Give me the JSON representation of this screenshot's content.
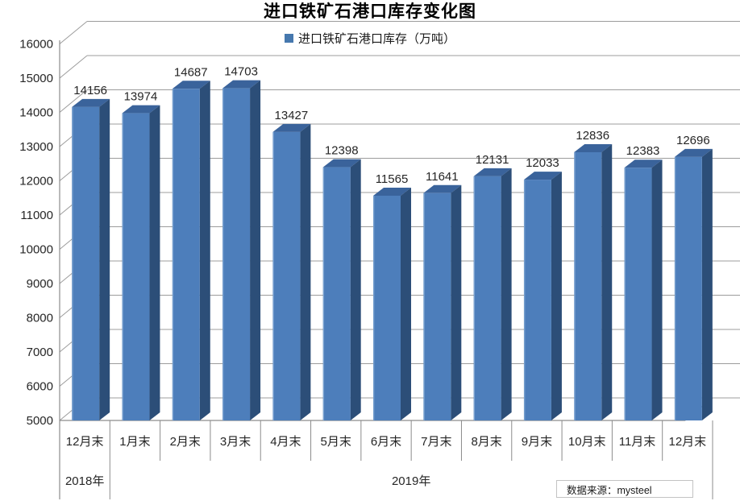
{
  "title": "进口铁矿石港口库存变化图",
  "legend": {
    "label": "进口铁矿石港口库存（万吨）",
    "marker_color": "#4678AE"
  },
  "source_note": "数据来源：mysteel",
  "chart_data": {
    "type": "bar",
    "variant": "3d-column",
    "title": "进口铁矿石港口库存变化图",
    "series_name": "进口铁矿石港口库存（万吨）",
    "categories": [
      "12月末",
      "1月末",
      "2月末",
      "3月末",
      "4月末",
      "5月末",
      "6月末",
      "7月末",
      "8月末",
      "9月末",
      "10月末",
      "11月末",
      "12月末"
    ],
    "values": [
      14156,
      13974,
      14687,
      14703,
      13427,
      12398,
      11565,
      11641,
      12131,
      12033,
      12836,
      12383,
      12696
    ],
    "year_groups": [
      {
        "label": "2018年",
        "count": 1
      },
      {
        "label": "2019年",
        "count": 12
      }
    ],
    "ylim": [
      5000,
      16000
    ],
    "ytick_step": 1000,
    "grid": true,
    "legend_position": "top",
    "source": "数据来源：mysteel",
    "colors": {
      "bar_front": "#4D7EBB",
      "bar_top": "#3A639B",
      "bar_side": "#2C4E78",
      "bar_highlight": "#83A9D4",
      "gridline": "#9C9C9C",
      "axis_line": "#8C8C8C",
      "table_line": "#8C8C8C",
      "label": "#262626"
    }
  }
}
